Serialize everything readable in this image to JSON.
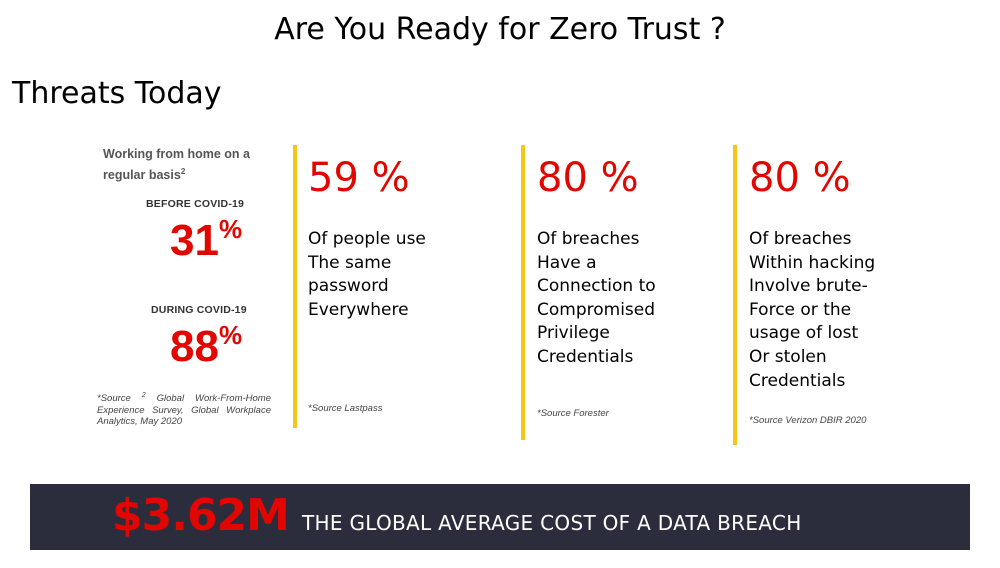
{
  "slide": {
    "title": "Are You Ready for Zero Trust ?",
    "subtitle": "Threats Today"
  },
  "covid_panel": {
    "heading": "Working from home on a regular basis",
    "heading_superscript": "2",
    "before_label": "BEFORE COVID-19",
    "before_value": "31",
    "during_label": "DURING COVID-19",
    "during_value": "88",
    "percent_sign": "%",
    "source_prefix": "*Source",
    "source_superscript": "2",
    "source_text": "Global Work-From-Home Experience Survey, Global Workplace Analytics, May 2020"
  },
  "stats": [
    {
      "value": "59 %",
      "description": "Of people use\nThe same\npassword\nEverywhere",
      "source": "*Source Lastpass"
    },
    {
      "value": "80 %",
      "description": "Of breaches\nHave a\nConnection to\nCompromised\nPrivilege\nCredentials",
      "source": "*Source Forester"
    },
    {
      "value": "80 %",
      "description": "Of breaches\nWithin hacking\nInvolve brute-\nForce or the\nusage of lost\nOr stolen\nCredentials",
      "source": "*Source Verizon DBIR 2020"
    }
  ],
  "banner": {
    "amount": "$3.62M",
    "text": "THE GLOBAL AVERAGE COST OF A DATA BREACH"
  },
  "colors": {
    "accent_red": "#e10600",
    "divider_yellow": "#f5c518",
    "banner_bg": "#2b2d3d"
  }
}
